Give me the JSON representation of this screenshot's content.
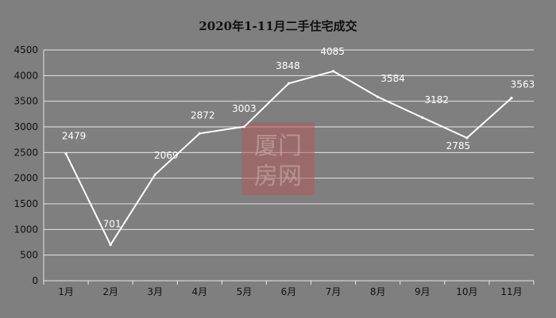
{
  "chart_data": {
    "type": "line",
    "title": "2020年1-11月二手住宅成交",
    "categories": [
      "1月",
      "2月",
      "3月",
      "4月",
      "5月",
      "6月",
      "7月",
      "8月",
      "9月",
      "10月",
      "11月"
    ],
    "series": [
      {
        "values": [
          2479,
          701,
          2069,
          2872,
          3003,
          3848,
          4085,
          3584,
          3182,
          2785,
          3563
        ]
      }
    ],
    "ylim": [
      0,
      4500
    ],
    "yticks": [
      "0",
      "500",
      "1000",
      "1500",
      "2000",
      "2500",
      "3000",
      "3500",
      "4000",
      "4500"
    ],
    "grid": true,
    "line_color": "#ffffff",
    "background_color": "#7f7f7f"
  },
  "watermark": {
    "line1": "厦门",
    "line2": "房网",
    "color": "#b05a5a"
  }
}
